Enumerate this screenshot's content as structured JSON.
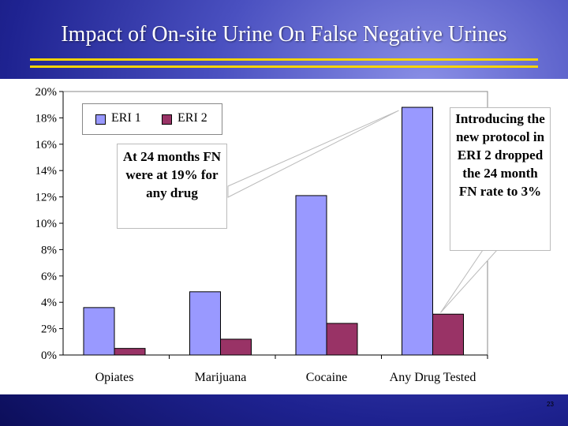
{
  "slide": {
    "title": "Impact of On-site Urine On False Negative Urines",
    "page_number": "23"
  },
  "colors": {
    "eri1": "#9999ff",
    "eri2": "#993366",
    "title_rule": "#f5d400"
  },
  "chart_data": {
    "type": "bar",
    "categories": [
      "Opiates",
      "Marijuana",
      "Cocaine",
      "Any Drug Tested"
    ],
    "series": [
      {
        "name": "ERI 1",
        "values": [
          3.6,
          4.8,
          12.1,
          18.8
        ]
      },
      {
        "name": "ERI 2",
        "values": [
          0.5,
          1.2,
          2.4,
          3.1
        ]
      }
    ],
    "ylim": [
      0,
      20
    ],
    "yticks": [
      "0%",
      "2%",
      "4%",
      "6%",
      "8%",
      "10%",
      "12%",
      "14%",
      "16%",
      "18%",
      "20%"
    ],
    "legend_placement": "top-left",
    "grid": false
  },
  "callouts": {
    "left": "At 24 months FN were at 19% for any drug",
    "right": "Introducing the new protocol in ERI 2 dropped the 24 month FN rate to 3%"
  }
}
